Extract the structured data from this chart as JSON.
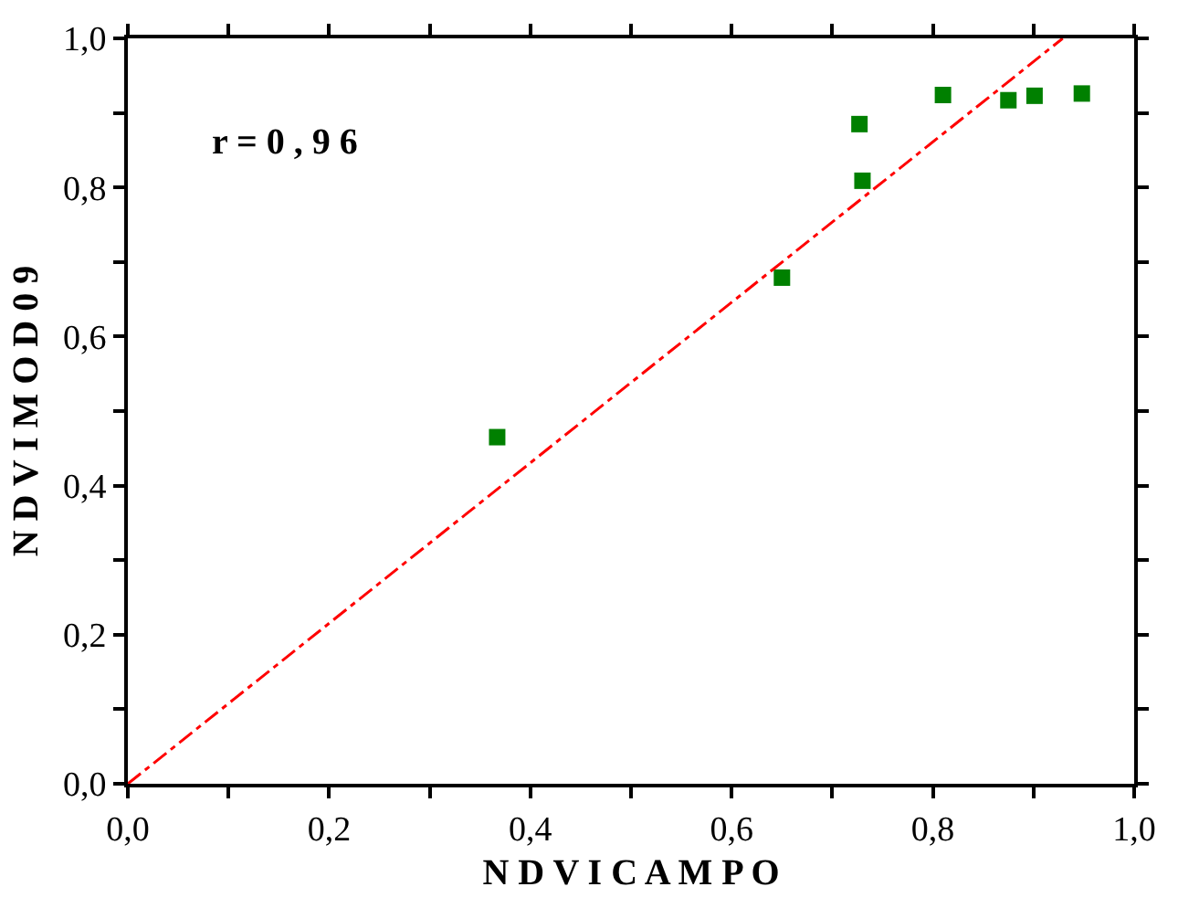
{
  "chart_data": {
    "type": "scatter",
    "xlabel": "N D V I C A M P O",
    "ylabel": "N D V I M O D 0 9",
    "annotations": [
      "r = 0 , 9 6"
    ],
    "xlim": [
      0,
      1
    ],
    "ylim": [
      0,
      1
    ],
    "xticks": [
      {
        "value": 0,
        "label": "0,0"
      },
      {
        "value": 0.1,
        "label": null
      },
      {
        "value": 0.2,
        "label": "0,2"
      },
      {
        "value": 0.3,
        "label": null
      },
      {
        "value": 0.4,
        "label": "0,4"
      },
      {
        "value": 0.5,
        "label": null
      },
      {
        "value": 0.6,
        "label": "0,6"
      },
      {
        "value": 0.7,
        "label": null
      },
      {
        "value": 0.8,
        "label": "0,8"
      },
      {
        "value": 0.9,
        "label": null
      },
      {
        "value": 1.0,
        "label": "1,0"
      }
    ],
    "yticks": [
      {
        "value": 0,
        "label": "0,0"
      },
      {
        "value": 0.1,
        "label": null
      },
      {
        "value": 0.2,
        "label": "0,2"
      },
      {
        "value": 0.3,
        "label": null
      },
      {
        "value": 0.4,
        "label": "0,4"
      },
      {
        "value": 0.5,
        "label": null
      },
      {
        "value": 0.6,
        "label": "0,6"
      },
      {
        "value": 0.7,
        "label": null
      },
      {
        "value": 0.8,
        "label": "0,8"
      },
      {
        "value": 0.9,
        "label": null
      },
      {
        "value": 1.0,
        "label": "1,0"
      }
    ],
    "marker": "square",
    "series": [
      {
        "color": "#008000",
        "x": [
          0.367,
          0.65,
          0.727,
          0.73,
          0.81,
          0.875,
          0.901,
          0.948
        ],
        "values": [
          0.465,
          0.679,
          0.885,
          0.809,
          0.924,
          0.917,
          0.923,
          0.926
        ]
      },
      {
        "type": "line",
        "color": "#ff0000",
        "line_style": "dashdot",
        "marker": "none",
        "x": [
          0,
          0.929
        ],
        "values": [
          0,
          1
        ]
      }
    ]
  }
}
